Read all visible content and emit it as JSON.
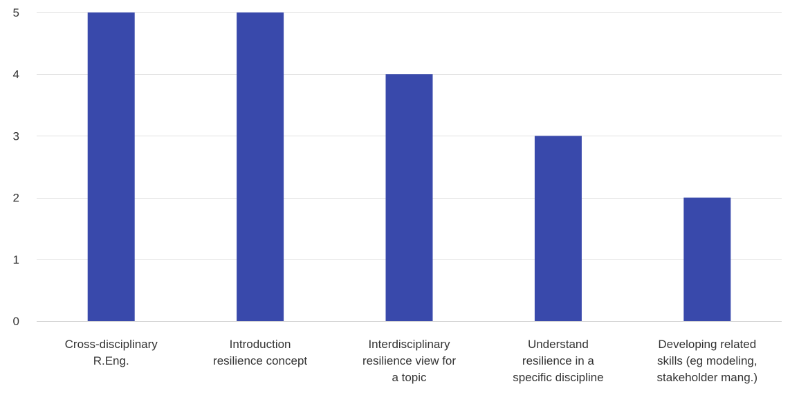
{
  "chart_data": {
    "type": "bar",
    "categories": [
      [
        "Cross-disciplinary",
        "R.Eng."
      ],
      [
        "Introduction",
        "resilience concept"
      ],
      [
        "Interdisciplinary",
        "resilience view for",
        "a topic"
      ],
      [
        "Understand",
        "resilience in a",
        "specific discipline"
      ],
      [
        "Developing related",
        "skills (eg modeling,",
        "stakeholder mang.)"
      ]
    ],
    "values": [
      5,
      5,
      4,
      3,
      2
    ],
    "ylim": [
      0,
      5
    ],
    "yticks": [
      0,
      1,
      2,
      3,
      4,
      5
    ],
    "grid": true,
    "bar_color": "#3949ab",
    "title": "",
    "xlabel": "",
    "ylabel": ""
  }
}
